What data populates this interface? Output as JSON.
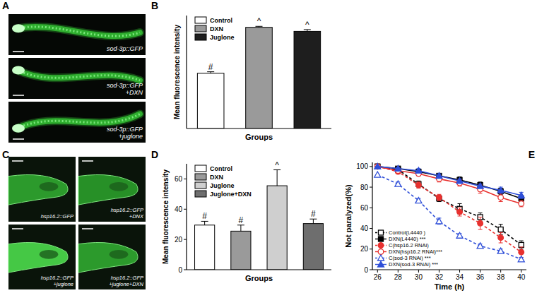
{
  "panel_letters": [
    "A",
    "B",
    "C",
    "D",
    "E"
  ],
  "micrographs": [
    {
      "labels": [
        [
          "sod-3p::GFP"
        ],
        [
          "sod-3p::GFP",
          "+DXN"
        ],
        [
          "sod-3p::GFP",
          "+juglone"
        ]
      ]
    },
    {
      "labels": [
        [
          "hsp16.2::GFP"
        ],
        [
          "hsp16.2::GFP",
          "+DNX"
        ],
        [
          "hsp16.2::GFP",
          "+juglone"
        ],
        [
          "hsp16.2::GFP",
          "+juglone+DXN"
        ]
      ]
    }
  ],
  "chart_data": [
    {
      "type": "bar",
      "ylabel": "Mean fluorescence intensity",
      "xlabel": "Groups",
      "categories": [
        "Control",
        "DXN",
        "Juglone"
      ],
      "values": [
        22,
        40.3,
        38.7
      ],
      "errors": [
        0.6,
        0.4,
        0.7
      ],
      "annotations": [
        "#",
        "^",
        "^"
      ],
      "colors": [
        "#ffffff",
        "#9a9a9a",
        "#1e1e1e"
      ],
      "ylim": [
        0,
        45
      ],
      "tick_labels": false,
      "legend": "upper-left"
    },
    {
      "type": "bar",
      "ylabel": "Mean fluorescence intensity",
      "xlabel": "Groups",
      "categories": [
        "Control",
        "DXN",
        "Juglone",
        "Juglone+DXN"
      ],
      "values": [
        29.5,
        25.5,
        55.5,
        30.5
      ],
      "errors": [
        2.5,
        4,
        10.5,
        3
      ],
      "annotations": [
        "#",
        "#",
        "^",
        "#"
      ],
      "colors": [
        "#ffffff",
        "#9a9a9a",
        "#cfcfcf",
        "#6e6e6e"
      ],
      "ylim": [
        0,
        70
      ],
      "yticks": [
        0,
        20,
        40,
        60
      ],
      "tick_labels": "y",
      "legend": "upper-left"
    },
    {
      "type": "line",
      "xlabel": "Time (h)",
      "ylabel": "Not paralyzed(%)",
      "x": [
        26,
        28,
        30,
        32,
        34,
        36,
        38,
        40
      ],
      "xlim": [
        25.5,
        40.5
      ],
      "xticks": [
        26,
        28,
        30,
        32,
        34,
        36,
        38,
        40
      ],
      "ylim": [
        0,
        104
      ],
      "yticks": [
        0,
        20,
        40,
        60,
        80,
        100
      ],
      "legend": "lower-left",
      "series": [
        {
          "name": "Control(L4440 )",
          "color": "#000000",
          "marker": "square-open",
          "line_style": "dashed",
          "values": [
            100,
            97,
            83,
            69,
            59,
            51,
            39,
            24
          ],
          "errors": [
            0,
            2,
            3,
            3,
            5,
            4,
            5,
            4
          ]
        },
        {
          "name": "DXN(L4440) ***",
          "color": "#000000",
          "marker": "square",
          "line_style": "solid",
          "values": [
            100,
            98,
            95,
            91,
            87,
            82,
            76,
            69
          ],
          "errors": [
            0,
            1,
            2,
            2,
            3,
            3,
            3,
            3
          ]
        },
        {
          "name": "C(hsp16.2 RNAi)",
          "color": "#e8312f",
          "marker": "circle",
          "line_style": "dashed",
          "values": [
            100,
            95,
            82,
            70,
            56,
            45,
            31,
            17
          ],
          "errors": [
            0,
            2,
            3,
            3,
            4,
            6,
            5,
            5
          ]
        },
        {
          "name": "DXN(hsp16.2 RNAi)***",
          "color": "#e8312f",
          "marker": "circle-open",
          "line_style": "solid",
          "values": [
            100,
            96,
            93,
            88,
            84,
            78,
            70,
            64
          ],
          "errors": [
            0,
            2,
            2,
            3,
            3,
            4,
            4,
            3
          ]
        },
        {
          "name": "C(sod-3 RNAi) ***",
          "color": "#2f4fd8",
          "marker": "triangle-open",
          "line_style": "dashed",
          "values": [
            92,
            83,
            67,
            47,
            33,
            23,
            18,
            10
          ],
          "errors": [
            0,
            2,
            2,
            3,
            2,
            2,
            2,
            2
          ]
        },
        {
          "name": "DXN(sod-3 RNAi) ***",
          "color": "#2f4fd8",
          "marker": "triangle",
          "line_style": "solid",
          "values": [
            100,
            98,
            96,
            91,
            86,
            81,
            77,
            72
          ],
          "errors": [
            0,
            1,
            2,
            2,
            2,
            2,
            3,
            3
          ]
        }
      ]
    }
  ]
}
